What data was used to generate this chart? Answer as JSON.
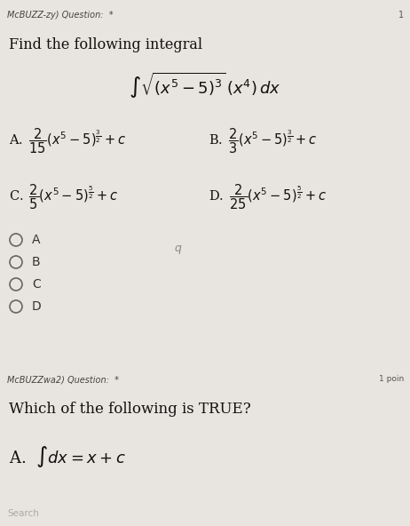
{
  "bg_color": "#e8e4df",
  "header1": "McBUZZ-zy) Question:  *",
  "page_num": "1",
  "title": "Find the following integral",
  "integral": "$\\int\\sqrt{(x^5-5)^3}\\,(x^4)\\,dx$",
  "optA": "A. $\\,\\dfrac{2}{15}(x^5-5)^{\\frac{3}{2}}+c$",
  "optB": "B. $\\,\\dfrac{2}{3}(x^5-5)^{\\frac{3}{2}}+c$",
  "optC": "C. $\\,\\dfrac{2}{5}(x^5-5)^{\\frac{5}{2}}+c$",
  "optD": "D. $\\,\\dfrac{2}{25}(x^5-5)^{\\frac{5}{2}}+c$",
  "radioA": "A",
  "radioB": "B",
  "radioC": "C",
  "radioD": "D",
  "divider_color": "#5bbcbb",
  "header2": "McBUZZwa2) Question:  *",
  "points2": "1 poin",
  "title2": "Which of the following is TRUE?",
  "optA2": "A.  $\\int dx = x+c$",
  "taskbar_color": "#2c2c2c",
  "search_text": "Search"
}
